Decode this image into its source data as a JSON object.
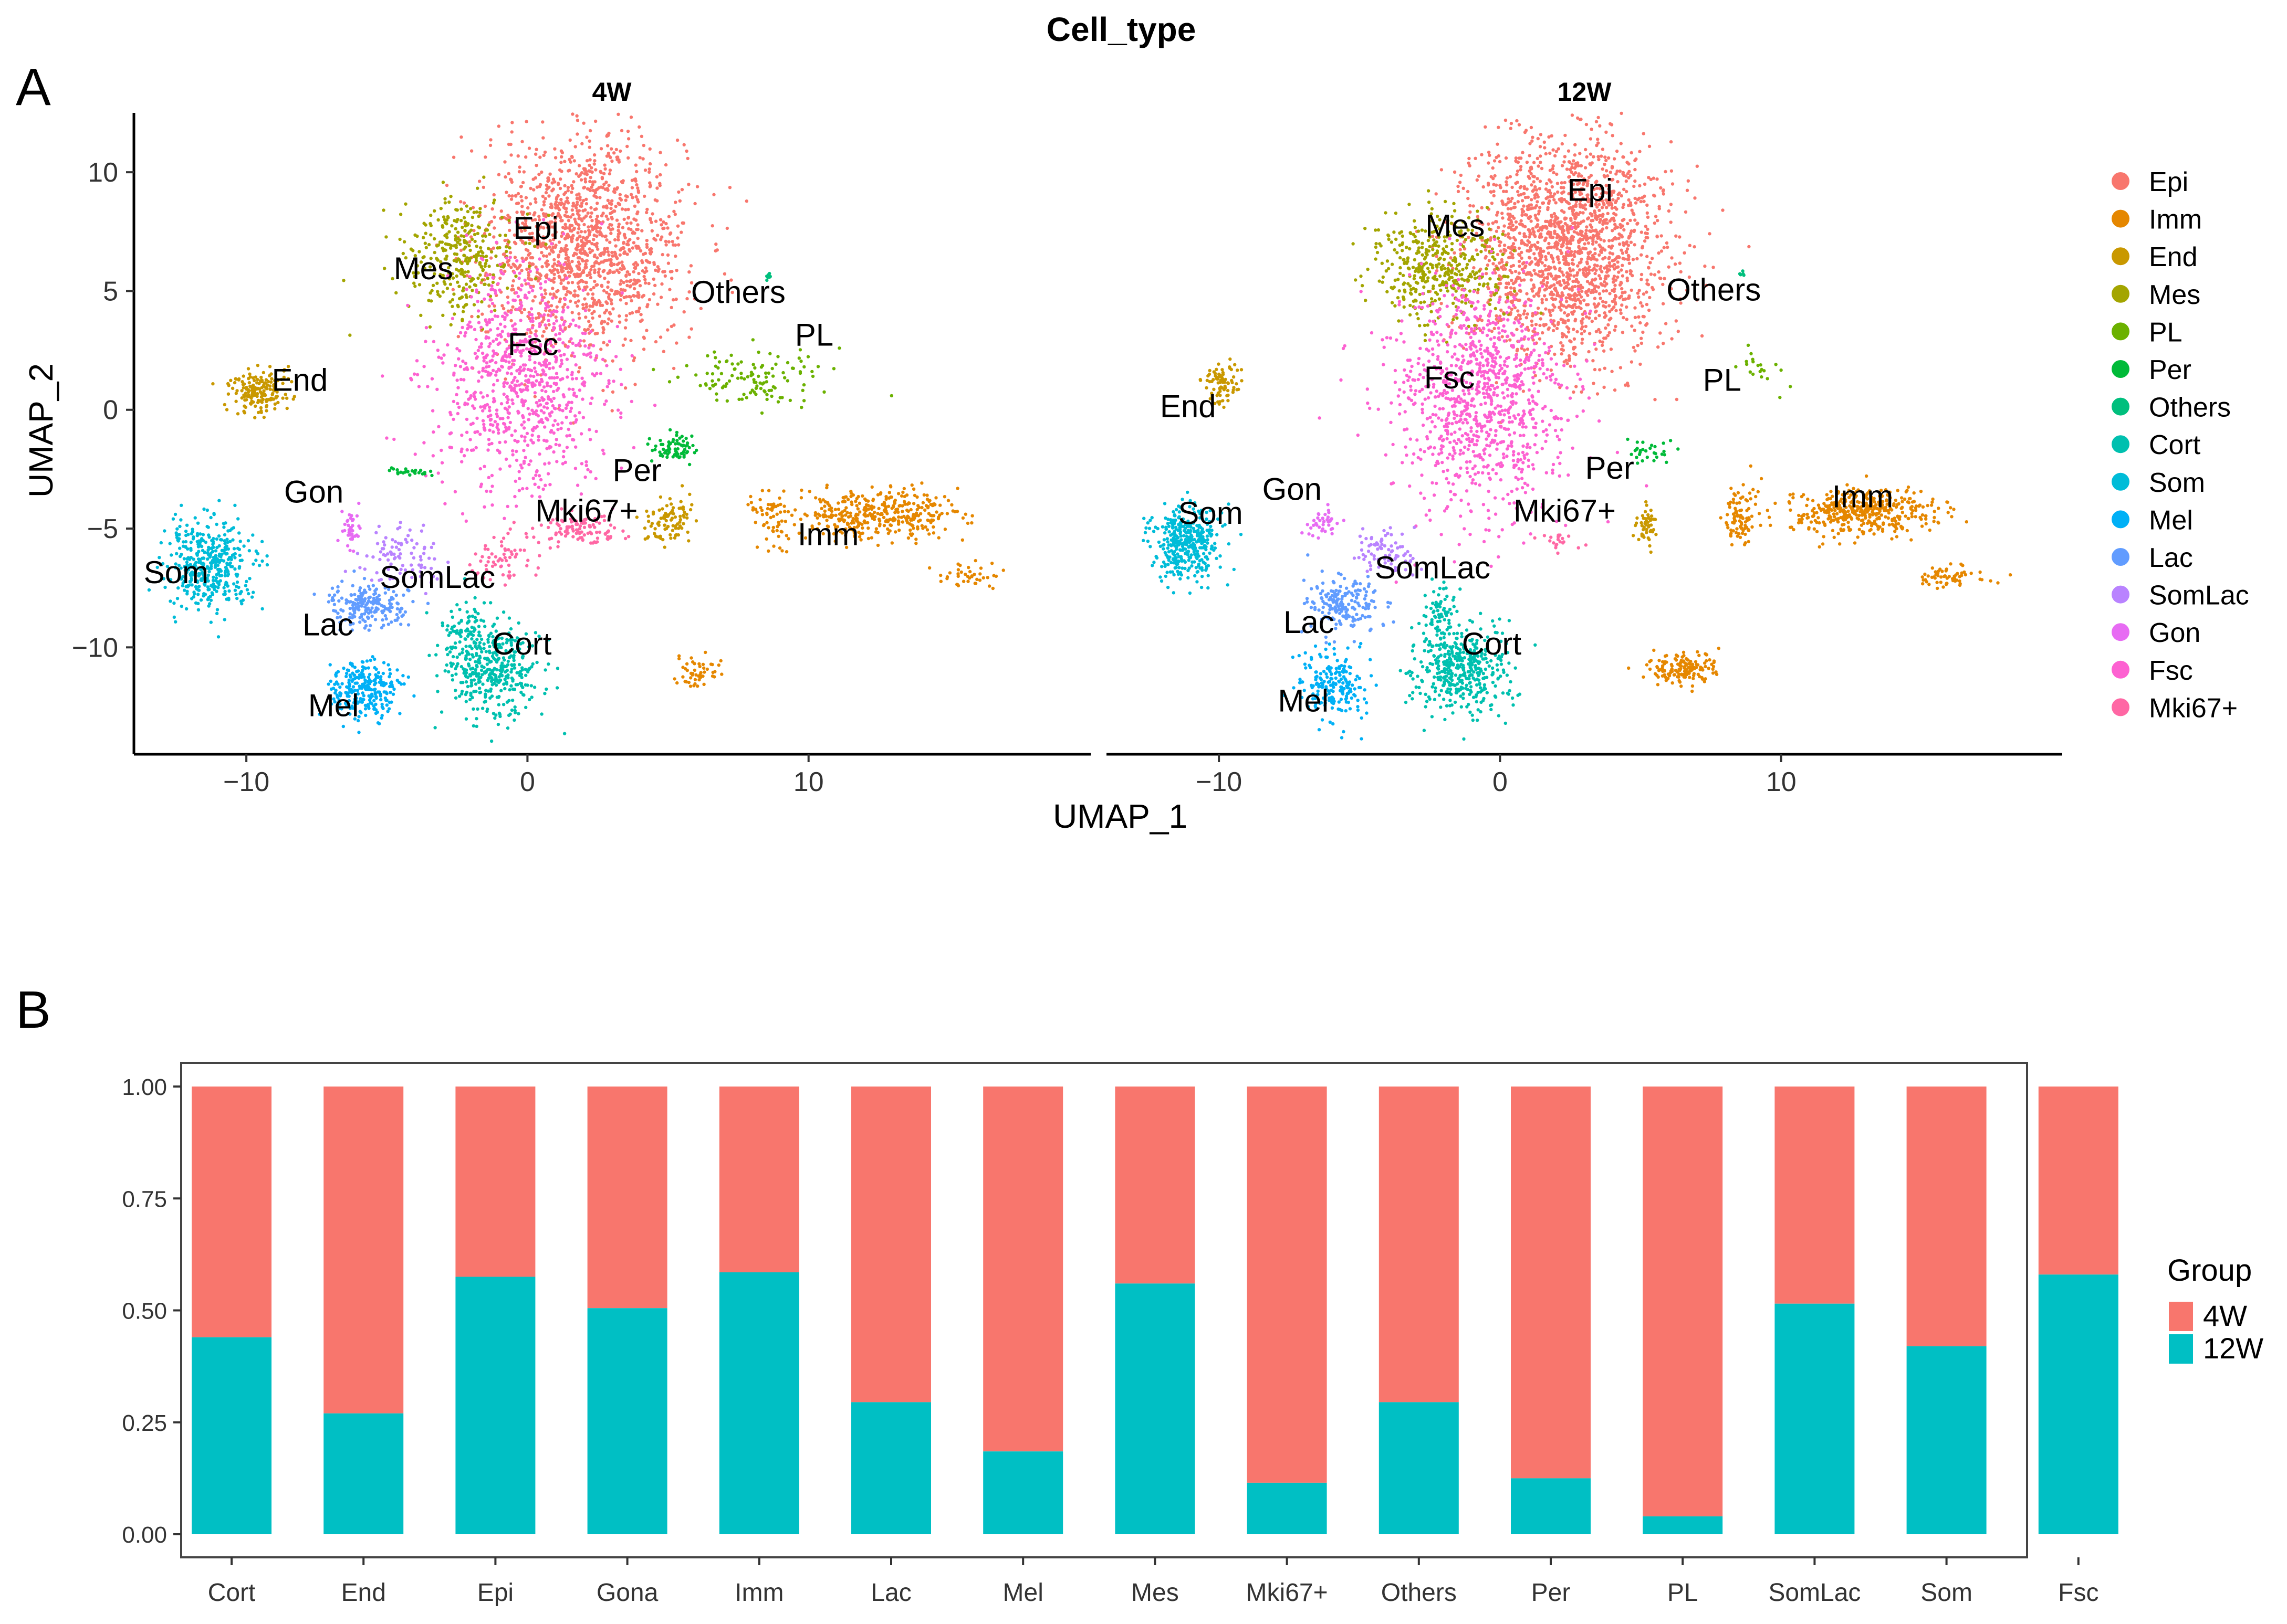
{
  "main_title": "Cell_type",
  "panel_a": {
    "letter": "A",
    "chart_data": {
      "type": "scatter",
      "title": "Cell_type",
      "xlabel": "UMAP_1",
      "ylabel": "UMAP_2",
      "xlim": [
        -14,
        20
      ],
      "ylim": [
        -14.5,
        12.5
      ],
      "x_ticks": [
        -10,
        0,
        10
      ],
      "y_ticks": [
        10,
        5,
        0,
        -5,
        -10
      ],
      "x_tick_labels": [
        "−10",
        "0",
        "10"
      ],
      "y_tick_labels": [
        "10",
        "5",
        "0",
        "−5",
        "−10"
      ],
      "facets": [
        {
          "title": "4W",
          "labels": [
            {
              "text": "Epi",
              "x": 0.3,
              "y": 7.2
            },
            {
              "text": "Mes",
              "x": -3.7,
              "y": 5.5
            },
            {
              "text": "Others",
              "x": 7.5,
              "y": 4.5
            },
            {
              "text": "Fsc",
              "x": 0.2,
              "y": 2.3
            },
            {
              "text": "PL",
              "x": 10.2,
              "y": 2.7
            },
            {
              "text": "End",
              "x": -8.1,
              "y": 0.8
            },
            {
              "text": "Per",
              "x": 3.9,
              "y": -3.0
            },
            {
              "text": "Gon",
              "x": -7.6,
              "y": -3.9
            },
            {
              "text": "Mki67+",
              "x": 2.1,
              "y": -4.7
            },
            {
              "text": "Imm",
              "x": 10.7,
              "y": -5.7
            },
            {
              "text": "Som",
              "x": -12.5,
              "y": -7.3
            },
            {
              "text": "SomLac",
              "x": -3.2,
              "y": -7.5
            },
            {
              "text": "Lac",
              "x": -7.1,
              "y": -9.5
            },
            {
              "text": "Cort",
              "x": -0.2,
              "y": -10.3
            },
            {
              "text": "Mel",
              "x": -6.9,
              "y": -12.9
            }
          ]
        },
        {
          "title": "12W",
          "labels": [
            {
              "text": "Epi",
              "x": 3.2,
              "y": 8.8
            },
            {
              "text": "Mes",
              "x": -1.6,
              "y": 7.3
            },
            {
              "text": "Others",
              "x": 7.6,
              "y": 4.6
            },
            {
              "text": "Fsc",
              "x": -1.8,
              "y": 0.9
            },
            {
              "text": "PL",
              "x": 7.9,
              "y": 0.8
            },
            {
              "text": "End",
              "x": -11.1,
              "y": -0.3
            },
            {
              "text": "Per",
              "x": 3.9,
              "y": -2.9
            },
            {
              "text": "Gon",
              "x": -7.4,
              "y": -3.8
            },
            {
              "text": "Mki67+",
              "x": 2.3,
              "y": -4.7
            },
            {
              "text": "Imm",
              "x": 12.9,
              "y": -4.1
            },
            {
              "text": "Som",
              "x": -10.3,
              "y": -4.8
            },
            {
              "text": "SomLac",
              "x": -2.4,
              "y": -7.1
            },
            {
              "text": "Lac",
              "x": -6.8,
              "y": -9.4
            },
            {
              "text": "Cort",
              "x": -0.3,
              "y": -10.3
            },
            {
              "text": "Mel",
              "x": -7.0,
              "y": -12.7
            }
          ]
        }
      ],
      "legend": [
        {
          "label": "Epi",
          "color": "#F8766D"
        },
        {
          "label": "Imm",
          "color": "#E58700"
        },
        {
          "label": "End",
          "color": "#C99800"
        },
        {
          "label": "Mes",
          "color": "#A3A500"
        },
        {
          "label": "PL",
          "color": "#6BB100"
        },
        {
          "label": "Per",
          "color": "#00BA38"
        },
        {
          "label": "Others",
          "color": "#00BF7D"
        },
        {
          "label": "Cort",
          "color": "#00C0AF"
        },
        {
          "label": "Som",
          "color": "#00BCD8"
        },
        {
          "label": "Mel",
          "color": "#00B0F6"
        },
        {
          "label": "Lac",
          "color": "#619CFF"
        },
        {
          "label": "SomLac",
          "color": "#B983FF"
        },
        {
          "label": "Gon",
          "color": "#E76BF3"
        },
        {
          "label": "Fsc",
          "color": "#FD61D1"
        },
        {
          "label": "Mki67+",
          "color": "#FF67A4"
        }
      ],
      "clusters": [
        {
          "facet": 0,
          "type": "Epi",
          "cx": 2.0,
          "cy": 7.0,
          "sx": 1.8,
          "sy": 2.3,
          "n": 1400
        },
        {
          "facet": 0,
          "type": "Mes",
          "cx": -2.4,
          "cy": 6.5,
          "sx": 1.0,
          "sy": 1.2,
          "n": 320
        },
        {
          "facet": 0,
          "type": "Fsc",
          "cx": -0.2,
          "cy": 1.2,
          "sx": 1.5,
          "sy": 2.4,
          "n": 850
        },
        {
          "facet": 0,
          "type": "End",
          "cx": -9.6,
          "cy": 0.8,
          "sx": 0.5,
          "sy": 0.5,
          "n": 180
        },
        {
          "facet": 0,
          "type": "Others",
          "cx": 8.6,
          "cy": 5.6,
          "sx": 0.05,
          "sy": 0.05,
          "n": 8
        },
        {
          "facet": 0,
          "type": "PL",
          "cx": 8.1,
          "cy": 1.4,
          "sx": 1.3,
          "sy": 0.6,
          "n": 120
        },
        {
          "facet": 0,
          "type": "Per",
          "cx": 5.2,
          "cy": -1.6,
          "sx": 0.4,
          "sy": 0.3,
          "n": 70
        },
        {
          "facet": 0,
          "type": "End",
          "cx": 5.0,
          "cy": -4.7,
          "sx": 0.4,
          "sy": 0.5,
          "n": 90
        },
        {
          "facet": 0,
          "type": "Imm",
          "cx": 12.5,
          "cy": -4.4,
          "sx": 1.4,
          "sy": 0.5,
          "n": 380
        },
        {
          "facet": 0,
          "type": "Imm",
          "cx": 8.7,
          "cy": -4.5,
          "sx": 0.4,
          "sy": 0.6,
          "n": 60
        },
        {
          "facet": 0,
          "type": "Imm",
          "cx": 15.8,
          "cy": -7.0,
          "sx": 0.6,
          "sy": 0.25,
          "n": 40
        },
        {
          "facet": 0,
          "type": "Imm",
          "cx": 6.0,
          "cy": -11.0,
          "sx": 0.4,
          "sy": 0.35,
          "n": 50
        },
        {
          "facet": 0,
          "type": "Mki67+",
          "cx": 1.8,
          "cy": -5.0,
          "sx": 0.8,
          "sy": 0.3,
          "n": 110
        },
        {
          "facet": 0,
          "type": "Mki67+",
          "cx": -0.9,
          "cy": -6.2,
          "sx": 0.5,
          "sy": 0.5,
          "n": 60
        },
        {
          "facet": 0,
          "type": "Som",
          "cx": -11.3,
          "cy": -6.5,
          "sx": 0.8,
          "sy": 0.9,
          "n": 420
        },
        {
          "facet": 0,
          "type": "Gon",
          "cx": -6.3,
          "cy": -5.0,
          "sx": 0.2,
          "sy": 0.4,
          "n": 40
        },
        {
          "facet": 0,
          "type": "SomLac",
          "cx": -4.5,
          "cy": -6.3,
          "sx": 0.7,
          "sy": 0.6,
          "n": 90
        },
        {
          "facet": 0,
          "type": "Lac",
          "cx": -5.7,
          "cy": -8.2,
          "sx": 0.7,
          "sy": 0.45,
          "n": 200
        },
        {
          "facet": 0,
          "type": "Cort",
          "cx": -1.2,
          "cy": -11.0,
          "sx": 0.8,
          "sy": 1.0,
          "n": 400
        },
        {
          "facet": 0,
          "type": "Cort",
          "cx": -2.3,
          "cy": -9.2,
          "sx": 0.4,
          "sy": 0.7,
          "n": 70
        },
        {
          "facet": 0,
          "type": "Mel",
          "cx": -5.8,
          "cy": -11.8,
          "sx": 0.6,
          "sy": 0.6,
          "n": 260
        },
        {
          "facet": 0,
          "type": "Per",
          "cx": -4.2,
          "cy": -2.6,
          "sx": 0.4,
          "sy": 0.08,
          "n": 25
        },
        {
          "facet": 1,
          "type": "Epi",
          "cx": 2.3,
          "cy": 6.8,
          "sx": 1.8,
          "sy": 2.3,
          "n": 1800
        },
        {
          "facet": 1,
          "type": "Mes",
          "cx": -2.2,
          "cy": 6.0,
          "sx": 1.1,
          "sy": 1.1,
          "n": 420
        },
        {
          "facet": 1,
          "type": "Fsc",
          "cx": -0.8,
          "cy": 0.5,
          "sx": 1.6,
          "sy": 2.4,
          "n": 1000
        },
        {
          "facet": 1,
          "type": "End",
          "cx": -9.9,
          "cy": 1.0,
          "sx": 0.35,
          "sy": 0.45,
          "n": 80
        },
        {
          "facet": 1,
          "type": "Others",
          "cx": 8.6,
          "cy": 5.7,
          "sx": 0.05,
          "sy": 0.05,
          "n": 6
        },
        {
          "facet": 1,
          "type": "PL",
          "cx": 9.3,
          "cy": 1.9,
          "sx": 0.5,
          "sy": 0.5,
          "n": 20
        },
        {
          "facet": 1,
          "type": "Per",
          "cx": 5.2,
          "cy": -1.8,
          "sx": 0.4,
          "sy": 0.3,
          "n": 30
        },
        {
          "facet": 1,
          "type": "End",
          "cx": 5.2,
          "cy": -4.9,
          "sx": 0.2,
          "sy": 0.4,
          "n": 50
        },
        {
          "facet": 1,
          "type": "Imm",
          "cx": 12.8,
          "cy": -4.3,
          "sx": 1.3,
          "sy": 0.5,
          "n": 420
        },
        {
          "facet": 1,
          "type": "Imm",
          "cx": 8.5,
          "cy": -4.5,
          "sx": 0.3,
          "sy": 0.7,
          "n": 90
        },
        {
          "facet": 1,
          "type": "Imm",
          "cx": 15.9,
          "cy": -7.0,
          "sx": 0.6,
          "sy": 0.25,
          "n": 60
        },
        {
          "facet": 1,
          "type": "Imm",
          "cx": 6.4,
          "cy": -10.9,
          "sx": 0.6,
          "sy": 0.35,
          "n": 150
        },
        {
          "facet": 1,
          "type": "Mki67+",
          "cx": 2.1,
          "cy": -5.5,
          "sx": 0.4,
          "sy": 0.2,
          "n": 20
        },
        {
          "facet": 1,
          "type": "Som",
          "cx": -11.2,
          "cy": -5.6,
          "sx": 0.6,
          "sy": 0.75,
          "n": 380
        },
        {
          "facet": 1,
          "type": "Gon",
          "cx": -6.3,
          "cy": -4.8,
          "sx": 0.3,
          "sy": 0.3,
          "n": 40
        },
        {
          "facet": 1,
          "type": "SomLac",
          "cx": -4.0,
          "cy": -6.0,
          "sx": 0.6,
          "sy": 0.5,
          "n": 80
        },
        {
          "facet": 1,
          "type": "Lac",
          "cx": -5.6,
          "cy": -8.2,
          "sx": 0.6,
          "sy": 0.6,
          "n": 190
        },
        {
          "facet": 1,
          "type": "Cort",
          "cx": -1.3,
          "cy": -11.0,
          "sx": 0.9,
          "sy": 0.9,
          "n": 420
        },
        {
          "facet": 1,
          "type": "Cort",
          "cx": -2.1,
          "cy": -8.8,
          "sx": 0.4,
          "sy": 0.7,
          "n": 80
        },
        {
          "facet": 1,
          "type": "Mel",
          "cx": -6.0,
          "cy": -11.6,
          "sx": 0.6,
          "sy": 0.7,
          "n": 200
        }
      ]
    }
  },
  "panel_b": {
    "letter": "B",
    "chart_data": {
      "type": "bar",
      "stacked": true,
      "categories": [
        "Cort",
        "End",
        "Epi",
        "Gona",
        "Imm",
        "Lac",
        "Mel",
        "Mes",
        "Mki67+",
        "Others",
        "Per",
        "PL",
        "SomLac",
        "Som",
        "Fsc"
      ],
      "series": [
        {
          "name": "12W",
          "color": "#00BFC4",
          "values": [
            0.44,
            0.27,
            0.575,
            0.505,
            0.585,
            0.295,
            0.185,
            0.56,
            0.115,
            0.295,
            0.125,
            0.04,
            0.515,
            0.42,
            0.58
          ]
        },
        {
          "name": "4W",
          "color": "#F8766D",
          "values": [
            0.56,
            0.73,
            0.425,
            0.495,
            0.415,
            0.705,
            0.815,
            0.44,
            0.885,
            0.705,
            0.875,
            0.96,
            0.485,
            0.58,
            0.42
          ]
        }
      ],
      "ylim": [
        0,
        1
      ],
      "y_ticks": [
        0,
        0.25,
        0.5,
        0.75,
        1.0
      ],
      "y_tick_labels": [
        "0.00",
        "0.25",
        "0.50",
        "0.75",
        "1.00"
      ],
      "xlabel": "",
      "ylabel": "",
      "legend_title": "Group",
      "legend_items": [
        {
          "label": "4W",
          "color": "#F8766D"
        },
        {
          "label": "12W",
          "color": "#00BFC4"
        }
      ]
    }
  }
}
